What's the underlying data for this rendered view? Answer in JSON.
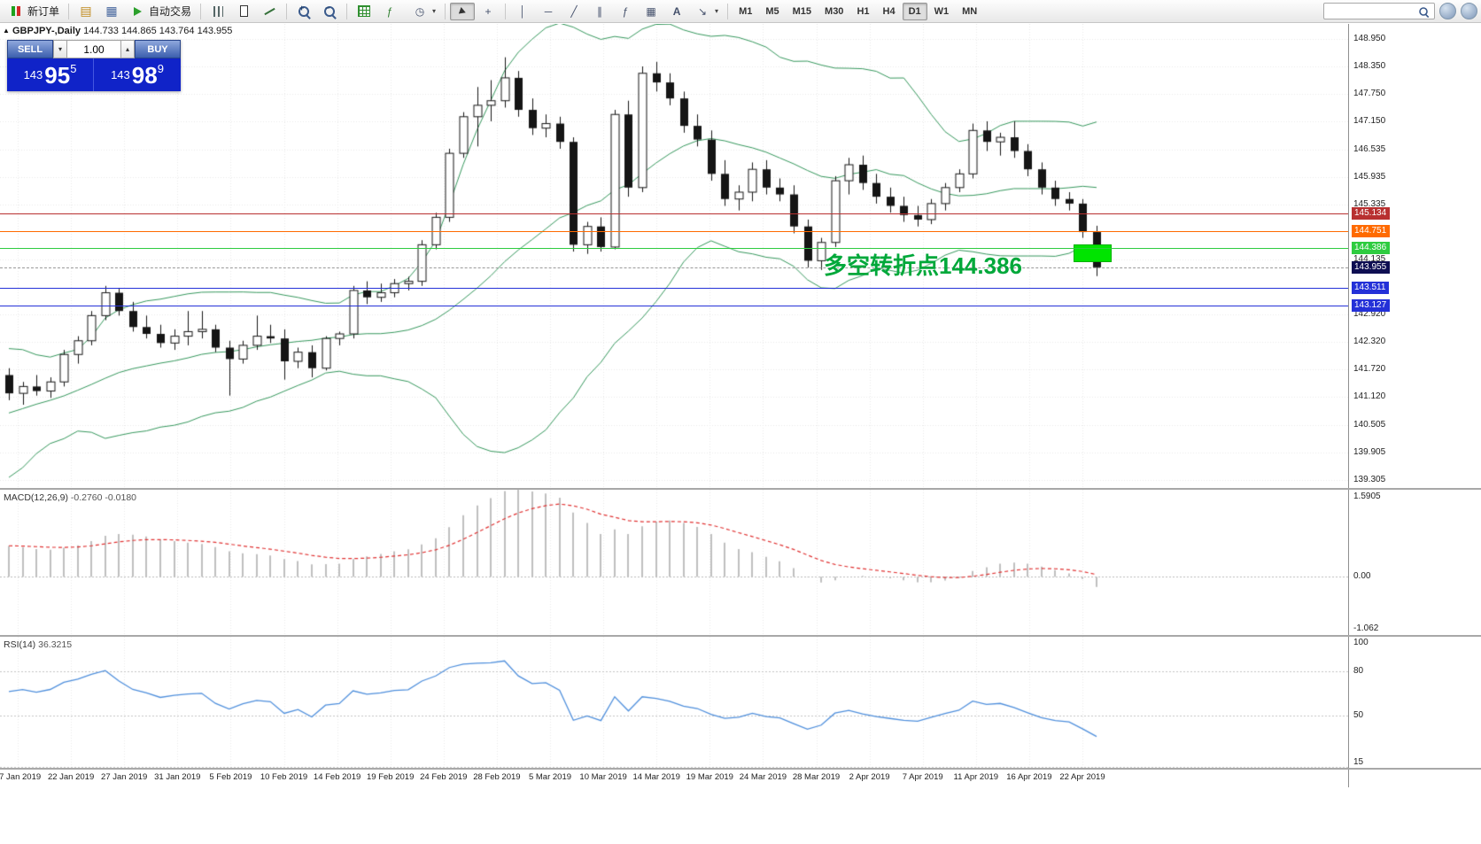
{
  "toolbar": {
    "new_order": "新订单",
    "autotrading": "自动交易",
    "timeframes": [
      "M1",
      "M5",
      "M15",
      "M30",
      "H1",
      "H4",
      "D1",
      "W1",
      "MN"
    ],
    "active_timeframe": "D1",
    "search_value": "",
    "icon_glyphs": {
      "doc": "▤",
      "win": "▦",
      "vline": "│",
      "hline": "─",
      "trend": "╱",
      "channel": "∥",
      "fibo": "ƒ",
      "shapes": "▦",
      "text_tool": "A",
      "arrow": "↘",
      "caret": "▾",
      "caret_up": "▴",
      "crosshair": "+",
      "clock": "◷",
      "plus": "+",
      "minus": "−"
    }
  },
  "chart_header": {
    "collapse_icon": "▲",
    "title": "GBPJPY-,Daily",
    "open": "144.733",
    "high": "144.865",
    "low": "143.764",
    "close": "143.955"
  },
  "one_click": {
    "sell_label": "SELL",
    "buy_label": "BUY",
    "volume": "1.00",
    "sell_price": {
      "prefix": "143",
      "big": "95",
      "sup": "5"
    },
    "buy_price": {
      "prefix": "143",
      "big": "98",
      "sup": "9"
    }
  },
  "annotation": {
    "text": "多空转折点144.386"
  },
  "levels": [
    {
      "label": "145.134",
      "value": 145.134,
      "color": "#b83030",
      "style": "solid"
    },
    {
      "label": "144.751",
      "value": 144.751,
      "color": "#ff6a00",
      "style": "solid"
    },
    {
      "label": "144.386",
      "value": 144.386,
      "color": "#2ecc40",
      "style": "solid"
    },
    {
      "label": "143.955",
      "value": 143.955,
      "color": "#9a9a9a",
      "badge": "#0e0e52",
      "style": "dashed"
    },
    {
      "label": "143.511",
      "value": 143.511,
      "color": "#2431d8",
      "style": "solid"
    },
    {
      "label": "143.127",
      "value": 143.127,
      "color": "#2431d8",
      "style": "solid"
    }
  ],
  "price_axis": {
    "ticks": [
      {
        "label": "148.950",
        "value": 148.95
      },
      {
        "label": "148.350",
        "value": 148.35
      },
      {
        "label": "147.750",
        "value": 147.75
      },
      {
        "label": "147.150",
        "value": 147.15
      },
      {
        "label": "146.535",
        "value": 146.535
      },
      {
        "label": "145.935",
        "value": 145.935
      },
      {
        "label": "145.335",
        "value": 145.335
      },
      {
        "label": "144.135",
        "value": 144.135
      },
      {
        "label": "142.920",
        "value": 142.92
      },
      {
        "label": "142.320",
        "value": 142.32
      },
      {
        "label": "141.720",
        "value": 141.72
      },
      {
        "label": "141.120",
        "value": 141.12
      },
      {
        "label": "140.505",
        "value": 140.505
      },
      {
        "label": "139.905",
        "value": 139.905
      },
      {
        "label": "139.305",
        "value": 139.305
      }
    ]
  },
  "macd_panel": {
    "name": "MACD(12,26,9)",
    "values": "-0.2760 -0.0180",
    "axis": [
      "1.5905",
      "0.00",
      "-1.062"
    ]
  },
  "rsi_panel": {
    "name": "RSI(14)",
    "value": "36.3215",
    "levels": [
      {
        "label": "100",
        "value": 100
      },
      {
        "label": "80",
        "value": 80
      },
      {
        "label": "50",
        "value": 50
      },
      {
        "label": "15",
        "value": 15
      }
    ]
  },
  "date_axis": [
    "17 Jan 2019",
    "22 Jan 2019",
    "27 Jan 2019",
    "31 Jan 2019",
    "5 Feb 2019",
    "10 Feb 2019",
    "14 Feb 2019",
    "19 Feb 2019",
    "24 Feb 2019",
    "28 Feb 2019",
    "5 Mar 2019",
    "10 Mar 2019",
    "14 Mar 2019",
    "19 Mar 2019",
    "24 Mar 2019",
    "28 Mar 2019",
    "2 Apr 2019",
    "7 Apr 2019",
    "11 Apr 2019",
    "16 Apr 2019",
    "22 Apr 2019"
  ],
  "chart_data": {
    "type": "candlestick",
    "symbol": "GBPJPY-",
    "timeframe": "Daily",
    "price_top": 149.28,
    "price_bottom": 139.13,
    "bollinger": {
      "period": 20,
      "deviation": 2
    },
    "macd": {
      "fast": 12,
      "slow": 26,
      "signal": 9
    },
    "rsi": {
      "period": 14
    },
    "warmup_closes": [
      139.05,
      139.45,
      139.3,
      139.75,
      140.1,
      139.9,
      140.35,
      140.7,
      140.5,
      140.95,
      141.3,
      141.1,
      141.45,
      141.25,
      141.05,
      141.35,
      141.6,
      141.4,
      141.2,
      141.5
    ],
    "candles": [
      [
        141.6,
        141.75,
        141.05,
        141.2
      ],
      [
        141.2,
        141.45,
        140.95,
        141.35
      ],
      [
        141.35,
        141.6,
        141.15,
        141.25
      ],
      [
        141.25,
        141.55,
        141.1,
        141.45
      ],
      [
        141.45,
        142.15,
        141.35,
        142.05
      ],
      [
        142.05,
        142.45,
        141.85,
        142.35
      ],
      [
        142.35,
        143.0,
        142.25,
        142.9
      ],
      [
        142.9,
        143.55,
        142.8,
        143.4
      ],
      [
        143.4,
        143.5,
        142.9,
        143.0
      ],
      [
        143.0,
        143.2,
        142.55,
        142.65
      ],
      [
        142.65,
        142.9,
        142.4,
        142.5
      ],
      [
        142.5,
        142.7,
        142.2,
        142.3
      ],
      [
        142.3,
        142.6,
        142.15,
        142.45
      ],
      [
        142.45,
        143.0,
        142.25,
        142.55
      ],
      [
        142.55,
        143.0,
        142.4,
        142.6
      ],
      [
        142.6,
        142.7,
        142.1,
        142.2
      ],
      [
        142.2,
        142.35,
        141.15,
        141.95
      ],
      [
        141.95,
        142.35,
        141.85,
        142.25
      ],
      [
        142.25,
        142.9,
        142.15,
        142.45
      ],
      [
        142.45,
        142.7,
        142.3,
        142.4
      ],
      [
        142.4,
        142.6,
        141.5,
        141.9
      ],
      [
        141.9,
        142.2,
        141.75,
        142.1
      ],
      [
        142.1,
        142.25,
        141.55,
        141.75
      ],
      [
        141.75,
        142.45,
        141.7,
        142.4
      ],
      [
        142.4,
        142.55,
        142.25,
        142.5
      ],
      [
        142.5,
        143.55,
        142.4,
        143.45
      ],
      [
        143.45,
        143.65,
        143.15,
        143.3
      ],
      [
        143.3,
        143.6,
        143.2,
        143.4
      ],
      [
        143.4,
        143.7,
        143.3,
        143.6
      ],
      [
        143.6,
        143.75,
        143.45,
        143.65
      ],
      [
        143.65,
        144.55,
        143.55,
        144.45
      ],
      [
        144.45,
        145.15,
        144.35,
        145.05
      ],
      [
        145.05,
        146.55,
        144.95,
        146.45
      ],
      [
        146.45,
        147.35,
        146.35,
        147.25
      ],
      [
        147.25,
        147.9,
        146.6,
        147.5
      ],
      [
        147.5,
        148.05,
        147.15,
        147.6
      ],
      [
        147.6,
        148.55,
        147.45,
        148.1
      ],
      [
        148.1,
        148.25,
        147.25,
        147.4
      ],
      [
        147.4,
        147.65,
        146.85,
        147.0
      ],
      [
        147.0,
        147.3,
        146.8,
        147.1
      ],
      [
        147.1,
        147.25,
        146.55,
        146.7
      ],
      [
        146.7,
        146.8,
        144.3,
        144.45
      ],
      [
        144.45,
        144.95,
        144.25,
        144.85
      ],
      [
        144.85,
        145.05,
        144.3,
        144.4
      ],
      [
        144.4,
        147.4,
        144.35,
        147.3
      ],
      [
        147.3,
        147.6,
        145.5,
        145.7
      ],
      [
        145.7,
        148.35,
        145.6,
        148.2
      ],
      [
        148.2,
        148.45,
        147.8,
        148.0
      ],
      [
        148.0,
        148.2,
        147.5,
        147.65
      ],
      [
        147.65,
        147.8,
        146.9,
        147.05
      ],
      [
        147.05,
        147.3,
        146.6,
        146.75
      ],
      [
        146.75,
        146.95,
        145.85,
        146.0
      ],
      [
        146.0,
        146.3,
        145.3,
        145.45
      ],
      [
        145.45,
        145.75,
        145.2,
        145.6
      ],
      [
        145.6,
        146.25,
        145.4,
        146.1
      ],
      [
        146.1,
        146.3,
        145.55,
        145.7
      ],
      [
        145.7,
        145.9,
        145.4,
        145.55
      ],
      [
        145.55,
        145.75,
        144.7,
        144.85
      ],
      [
        144.85,
        145.0,
        143.95,
        144.1
      ],
      [
        144.1,
        144.6,
        143.9,
        144.5
      ],
      [
        144.5,
        145.95,
        144.4,
        145.85
      ],
      [
        145.85,
        146.35,
        145.55,
        146.2
      ],
      [
        146.2,
        146.4,
        145.65,
        145.8
      ],
      [
        145.8,
        146.0,
        145.35,
        145.5
      ],
      [
        145.5,
        145.7,
        145.15,
        145.3
      ],
      [
        145.3,
        145.5,
        144.95,
        145.1
      ],
      [
        145.1,
        145.3,
        144.85,
        145.0
      ],
      [
        145.0,
        145.45,
        144.9,
        145.35
      ],
      [
        145.35,
        145.8,
        145.2,
        145.7
      ],
      [
        145.7,
        146.1,
        145.6,
        146.0
      ],
      [
        146.0,
        147.1,
        145.9,
        146.95
      ],
      [
        146.95,
        147.15,
        146.5,
        146.7
      ],
      [
        146.7,
        146.9,
        146.4,
        146.8
      ],
      [
        146.8,
        147.15,
        146.35,
        146.5
      ],
      [
        146.5,
        146.65,
        145.95,
        146.1
      ],
      [
        146.1,
        146.25,
        145.55,
        145.7
      ],
      [
        145.7,
        145.85,
        145.3,
        145.45
      ],
      [
        145.45,
        145.6,
        145.2,
        145.35
      ],
      [
        145.35,
        145.45,
        144.6,
        144.733
      ],
      [
        144.733,
        144.865,
        143.764,
        143.955
      ]
    ]
  }
}
